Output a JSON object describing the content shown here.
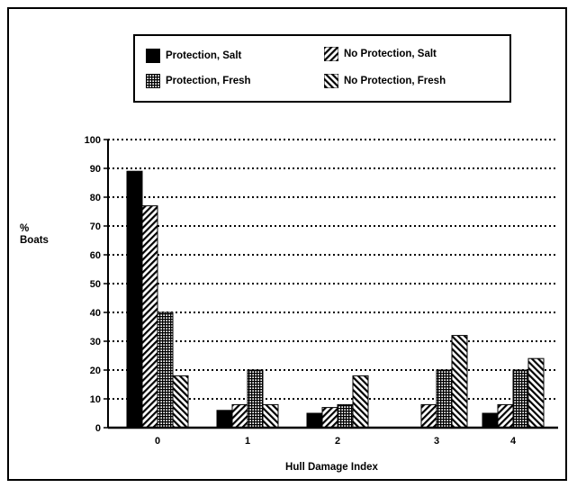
{
  "chart_data": {
    "type": "bar",
    "title": "",
    "xlabel": "Hull Damage Index",
    "ylabel": "% Boats",
    "categories": [
      "0",
      "1",
      "2",
      "3",
      "4"
    ],
    "ylim": [
      0,
      100
    ],
    "yticks": [
      0,
      10,
      20,
      30,
      40,
      50,
      60,
      70,
      80,
      90,
      100
    ],
    "grid": "horizontal-dotted",
    "legend_position": "top",
    "series": [
      {
        "name": "Protection, Salt",
        "pattern": "solid",
        "values": [
          89,
          6,
          5,
          0,
          5
        ]
      },
      {
        "name": "No Protection, Salt",
        "pattern": "diagonal",
        "values": [
          77,
          8,
          7,
          8,
          8
        ]
      },
      {
        "name": "Protection, Fresh",
        "pattern": "grid",
        "values": [
          40,
          20,
          8,
          20,
          20
        ]
      },
      {
        "name": "No Protection, Fresh",
        "pattern": "backdiagonal",
        "values": [
          18,
          8,
          18,
          32,
          24
        ]
      }
    ]
  },
  "legend": {
    "items": [
      {
        "label": "Protection, Salt"
      },
      {
        "label": "No Protection, Salt"
      },
      {
        "label": "Protection, Fresh"
      },
      {
        "label": "No Protection, Fresh"
      }
    ]
  },
  "axis": {
    "ylabel_line1": "%",
    "ylabel_line2": "Boats",
    "xlabel": "Hull Damage Index"
  },
  "colors": {
    "ink": "#000000",
    "background": "#ffffff"
  }
}
